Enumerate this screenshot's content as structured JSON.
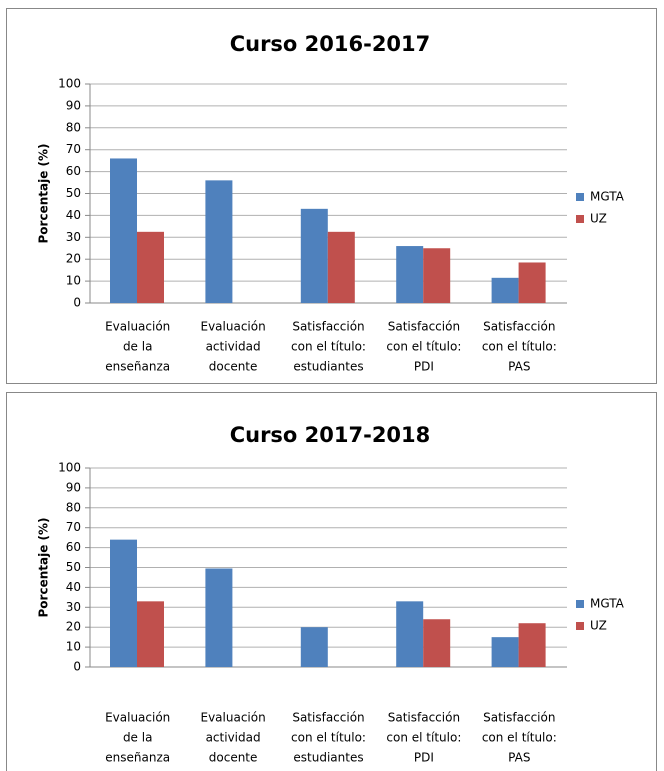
{
  "chart_data": [
    {
      "type": "bar",
      "title": "Curso 2016-2017",
      "y_label": "Porcentaje (%)",
      "categories": [
        [
          "Evaluación",
          "de la",
          "enseñanza"
        ],
        [
          "Evaluación",
          "actividad",
          "docente"
        ],
        [
          "Satisfacción",
          "con el título:",
          "estudiantes"
        ],
        [
          "Satisfacción",
          "con el título:",
          "PDI"
        ],
        [
          "Satisfacción",
          "con el título:",
          "PAS"
        ]
      ],
      "series": [
        {
          "name": "MGTA",
          "color": "#4f81bd",
          "values": [
            66,
            56,
            43,
            26,
            11.5
          ]
        },
        {
          "name": "UZ",
          "color": "#c0504d",
          "values": [
            32.5,
            null,
            32.5,
            25,
            18.5
          ]
        }
      ],
      "ylim": [
        0,
        100
      ],
      "yticks": [
        0,
        10,
        20,
        30,
        40,
        50,
        60,
        70,
        80,
        90,
        100
      ],
      "grid": true,
      "legend": "right"
    },
    {
      "type": "bar",
      "title": "Curso 2017-2018",
      "y_label": "Porcentaje (%)",
      "categories": [
        [
          "Evaluación",
          "de la",
          "enseñanza"
        ],
        [
          "Evaluación",
          "actividad",
          "docente"
        ],
        [
          "Satisfacción",
          "con el título:",
          "estudiantes"
        ],
        [
          "Satisfacción",
          "con el título:",
          "PDI"
        ],
        [
          "Satisfacción",
          "con el título:",
          "PAS"
        ]
      ],
      "series": [
        {
          "name": "MGTA",
          "color": "#4f81bd",
          "values": [
            64,
            49.5,
            20,
            33,
            15
          ]
        },
        {
          "name": "UZ",
          "color": "#c0504d",
          "values": [
            33,
            null,
            null,
            24,
            22
          ]
        }
      ],
      "ylim": [
        0,
        100
      ],
      "yticks": [
        0,
        10,
        20,
        30,
        40,
        50,
        60,
        70,
        80,
        90,
        100
      ],
      "grid": true,
      "legend": "right"
    }
  ]
}
